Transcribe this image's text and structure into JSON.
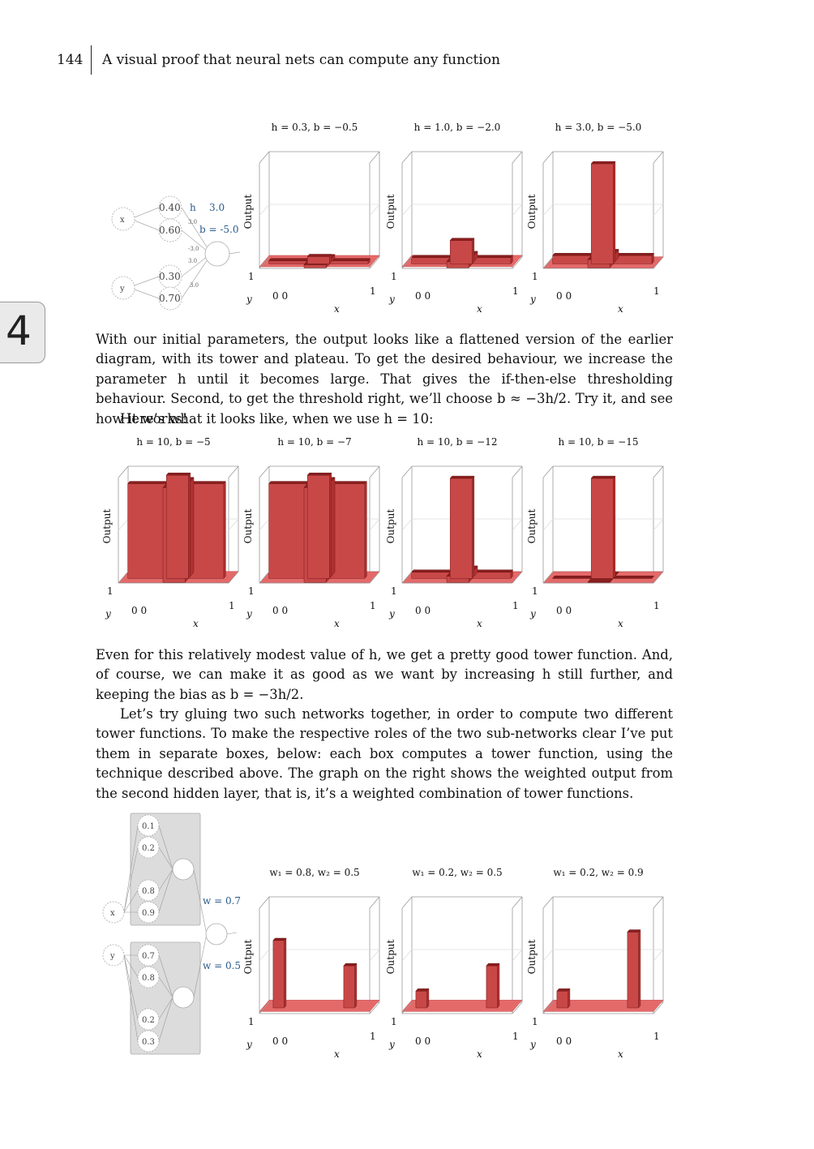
{
  "header": {
    "page_number": "144",
    "chapter_title": "A visual proof that neural nets can compute any function"
  },
  "chapter_tab": "4",
  "axis_labels": {
    "z": "Output",
    "x": "x",
    "y": "y",
    "zero": "0 0",
    "one": "1"
  },
  "figure1": {
    "network": {
      "input_x": "x",
      "input_y": "y",
      "hidden": [
        "0.40",
        "0.60",
        "0.30",
        "0.70"
      ],
      "h_label": "h",
      "h_value": "3.0",
      "b_label": "b = -5.0",
      "small_weights": [
        "3.0",
        "-3.0",
        "3.0",
        "3.0"
      ]
    },
    "plots": [
      {
        "title": "h = 0.3, b = −0.5",
        "h": 0.3,
        "b": -0.5
      },
      {
        "title": "h = 1.0, b = −2.0",
        "h": 1.0,
        "b": -2.0
      },
      {
        "title": "h = 3.0, b = −5.0",
        "h": 3.0,
        "b": -5.0
      }
    ]
  },
  "paragraphs": {
    "p1": "With our initial parameters, the output looks like a flattened version of the earlier diagram, with its tower and plateau. To get the desired behaviour, we increase the parameter h until it becomes large. That gives the if-then-else thresholding behaviour. Second, to get the threshold right, we’ll choose b ≈ −3h/2. Try it, and see how it works!",
    "p2": "Here’s what it looks like, when we use h = 10:",
    "p3": "Even for this relatively modest value of h, we get a pretty good tower function. And, of course, we can make it as good as we want by increasing h still further, and keeping the bias as b = −3h/2.",
    "p4": "Let’s try gluing two such networks together, in order to compute two different tower functions. To make the respective roles of the two sub-networks clear I’ve put them in separate boxes, below: each box computes a tower function, using the technique described above. The graph on the right shows the weighted output from the second hidden layer, that is, it’s a weighted combination of tower functions."
  },
  "figure2": {
    "plots": [
      {
        "title": "h = 10, b = −5",
        "h": 10,
        "b": -5
      },
      {
        "title": "h = 10, b = −7",
        "h": 10,
        "b": -7
      },
      {
        "title": "h = 10, b = −12",
        "h": 10,
        "b": -12
      },
      {
        "title": "h = 10, b = −15",
        "h": 10,
        "b": -15
      }
    ]
  },
  "figure3": {
    "network": {
      "input_x": "x",
      "input_y": "y",
      "box1_nodes": [
        "0.1",
        "0.2",
        "0.8",
        "0.9"
      ],
      "box2_nodes": [
        "0.7",
        "0.8",
        "0.2",
        "0.3"
      ],
      "w1_label": "w = 0.7",
      "w2_label": "w = 0.5"
    },
    "plots": [
      {
        "title": "w₁ = 0.8, w₂ = 0.5",
        "w1": 0.8,
        "w2": 0.5
      },
      {
        "title": "w₁ = 0.2, w₂ = 0.5",
        "w1": 0.2,
        "w2": 0.5
      },
      {
        "title": "w₁ = 0.2, w₂ = 0.9",
        "w1": 0.2,
        "w2": 0.9
      }
    ]
  }
}
